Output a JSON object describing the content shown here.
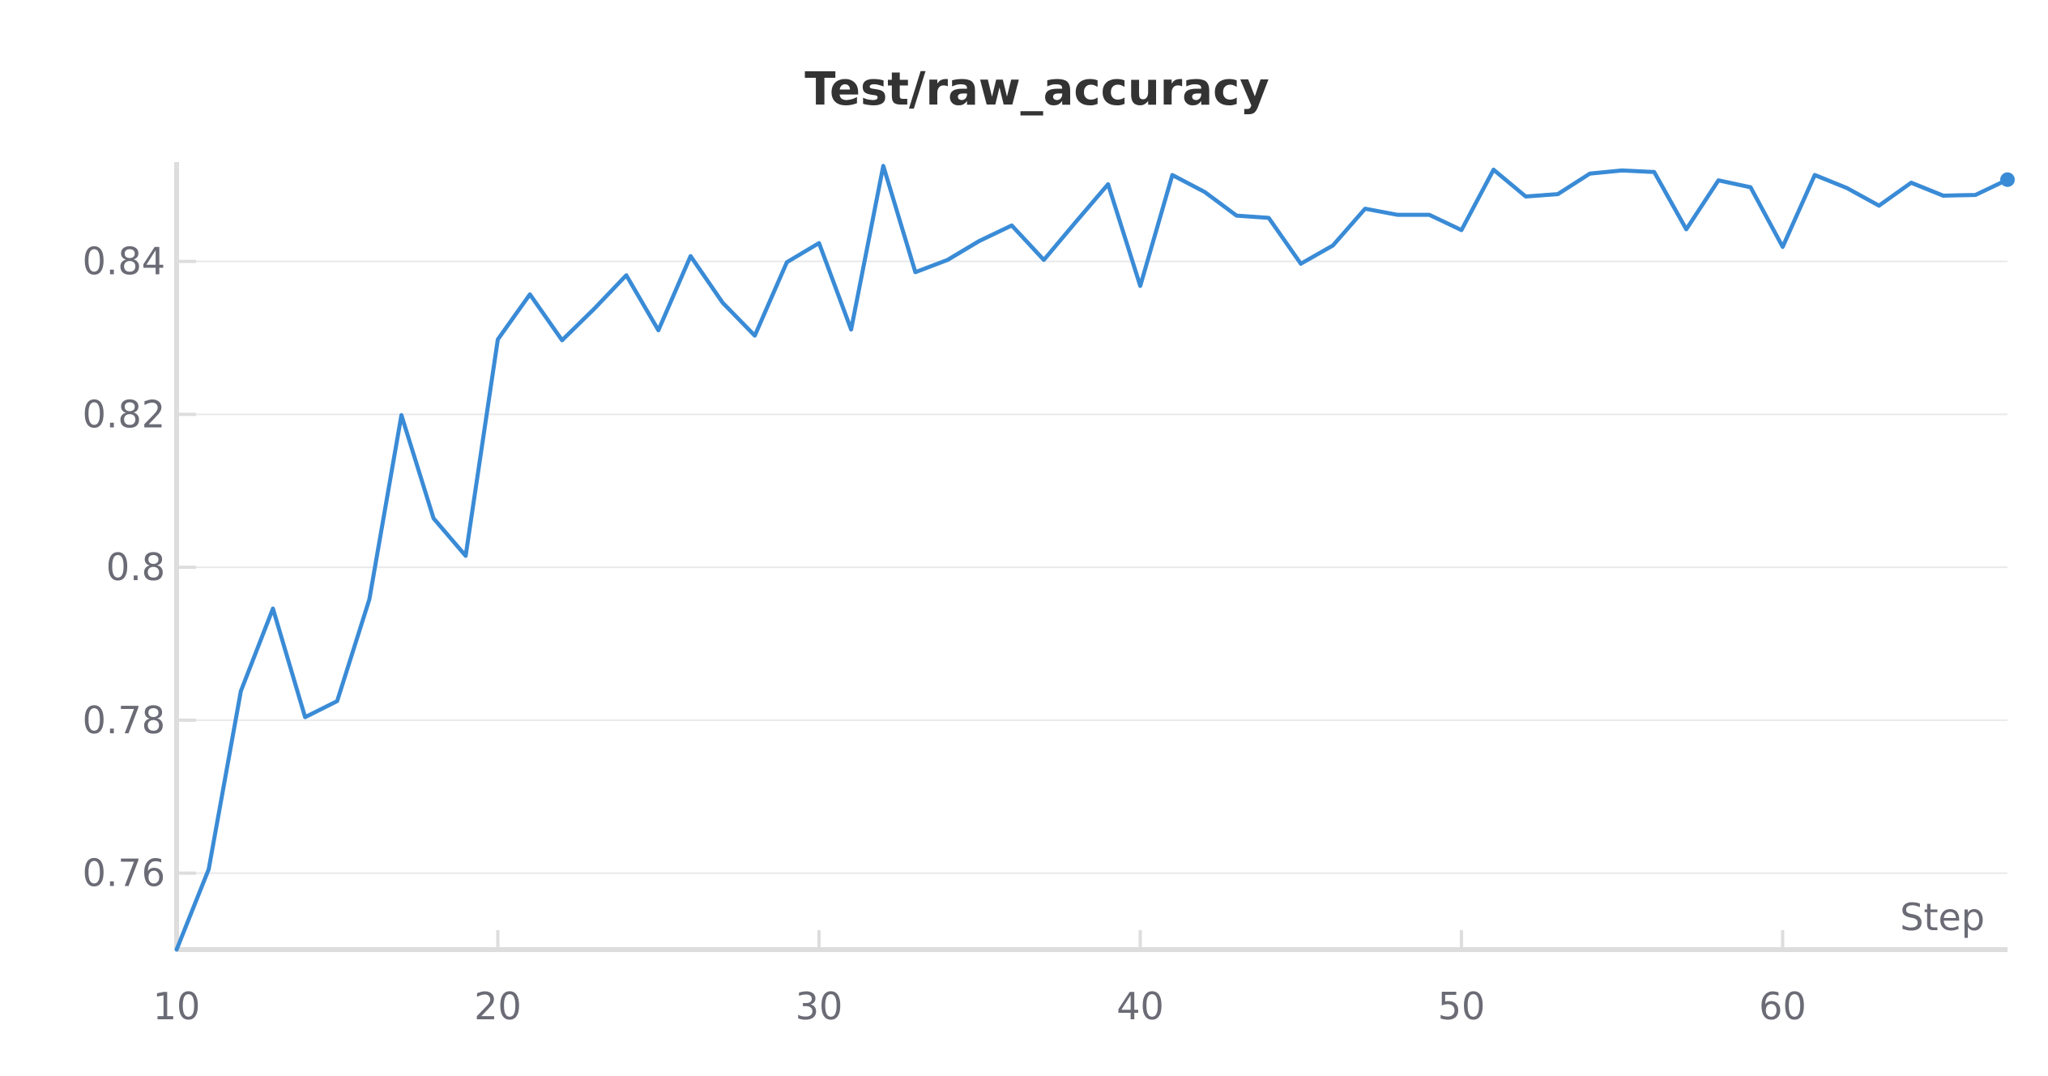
{
  "chart_data": {
    "type": "line",
    "title": "Test/raw_accuracy",
    "xlabel": "Step",
    "ylabel": "",
    "xlim": [
      10,
      67
    ],
    "ylim": [
      0.75,
      0.853
    ],
    "xticks": [
      10,
      20,
      30,
      40,
      50,
      60
    ],
    "yticks": [
      0.76,
      0.78,
      0.8,
      0.82,
      0.84
    ],
    "ytick_labels": [
      "0.76",
      "0.78",
      "0.8",
      "0.82",
      "0.84"
    ],
    "xtick_labels": [
      "10",
      "20",
      "30",
      "40",
      "50",
      "60"
    ],
    "grid": true,
    "colors": {
      "series": "#3a8bd6"
    },
    "series": [
      {
        "x": [
          10,
          11,
          12,
          13,
          14,
          15,
          16,
          17,
          18,
          19,
          20,
          21,
          22,
          23,
          24,
          25,
          26,
          27,
          28,
          29,
          30,
          31,
          32,
          33,
          34,
          35,
          36,
          37,
          38,
          39,
          40,
          41,
          42,
          43,
          44,
          45,
          46,
          47,
          48,
          49,
          50,
          51,
          52,
          53,
          54,
          55,
          56,
          57,
          58,
          59,
          60,
          61,
          62,
          63,
          64,
          65,
          66,
          67
        ],
        "values": [
          0.75,
          0.7605,
          0.7838,
          0.7946,
          0.7804,
          0.7825,
          0.7958,
          0.8199,
          0.8064,
          0.8015,
          0.8298,
          0.8357,
          0.8297,
          0.8338,
          0.8382,
          0.831,
          0.8407,
          0.8346,
          0.8303,
          0.8399,
          0.8424,
          0.8311,
          0.8525,
          0.8386,
          0.8402,
          0.8427,
          0.8447,
          0.8402,
          0.8452,
          0.8501,
          0.8368,
          0.8513,
          0.8491,
          0.846,
          0.8457,
          0.8397,
          0.8421,
          0.8469,
          0.8461,
          0.8461,
          0.8441,
          0.852,
          0.8485,
          0.8488,
          0.8515,
          0.8519,
          0.8517,
          0.8442,
          0.8506,
          0.8497,
          0.8419,
          0.8513,
          0.8496,
          0.8473,
          0.8503,
          0.8486,
          0.8487,
          0.8507
        ]
      }
    ]
  }
}
